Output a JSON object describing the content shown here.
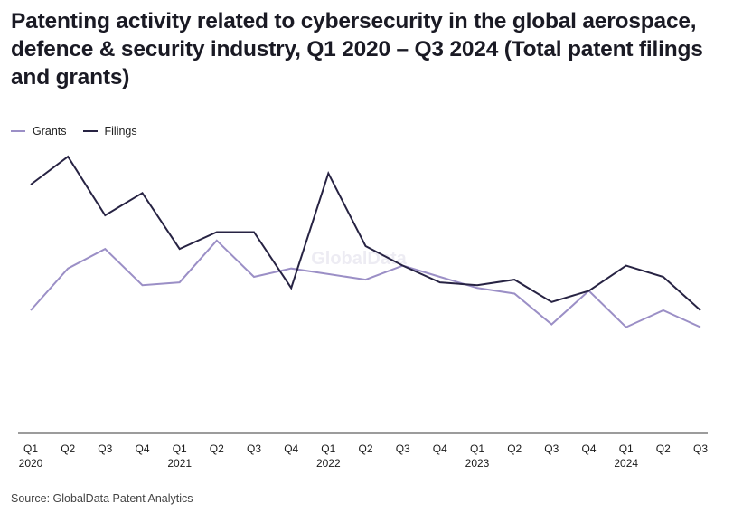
{
  "chart_data": {
    "type": "line",
    "title": "Patenting activity related to cybersecurity in the global aerospace, defence & security industry, Q1 2020 – Q3 2024 (Total patent filings and grants)",
    "xlabel": "",
    "ylabel": "",
    "categories": [
      "Q1",
      "Q2",
      "Q3",
      "Q4",
      "Q1",
      "Q2",
      "Q3",
      "Q4",
      "Q1",
      "Q2",
      "Q3",
      "Q4",
      "Q1",
      "Q2",
      "Q3",
      "Q4",
      "Q1",
      "Q2",
      "Q3"
    ],
    "years": [
      "2020",
      "",
      "",
      "",
      "2021",
      "",
      "",
      "",
      "2022",
      "",
      "",
      "",
      "2023",
      "",
      "",
      "",
      "2024",
      "",
      ""
    ],
    "ylim": [
      0,
      100
    ],
    "grid": false,
    "legend_position": "top-left",
    "series": [
      {
        "name": "Grants",
        "color": "#9b8fc6",
        "values": [
          44,
          59,
          66,
          53,
          54,
          69,
          56,
          59,
          57,
          55,
          60,
          56,
          52,
          50,
          39,
          51,
          38,
          44,
          38
        ]
      },
      {
        "name": "Filings",
        "color": "#272343",
        "values": [
          89,
          99,
          78,
          86,
          66,
          72,
          72,
          52,
          93,
          67,
          60,
          54,
          53,
          55,
          47,
          51,
          60,
          56,
          44
        ]
      }
    ],
    "watermark": "GlobalData",
    "source": "Source: GlobalData Patent Analytics"
  }
}
